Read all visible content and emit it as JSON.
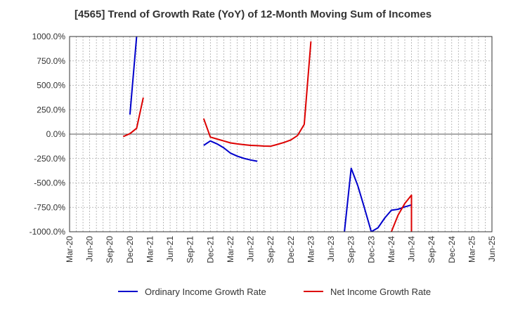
{
  "chart_data": {
    "type": "line",
    "title": "[4565]  Trend of Growth Rate (YoY) of 12-Month Moving Sum of Incomes",
    "xlabel": "",
    "ylabel": "",
    "x_ticks": [
      "Mar-20",
      "Jun-20",
      "Sep-20",
      "Dec-20",
      "Mar-21",
      "Jun-21",
      "Sep-21",
      "Dec-21",
      "Mar-22",
      "Jun-22",
      "Sep-22",
      "Dec-22",
      "Mar-23",
      "Jun-23",
      "Sep-23",
      "Dec-23",
      "Mar-24",
      "Jun-24",
      "Sep-24",
      "Dec-24",
      "Mar-25",
      "Jun-25"
    ],
    "y_ticks": [
      "1000.0%",
      "750.0%",
      "500.0%",
      "250.0%",
      "0.0%",
      "-250.0%",
      "-500.0%",
      "-750.0%",
      "-1000.0%"
    ],
    "ylim": [
      -1000,
      1000
    ],
    "grid": true,
    "legend_position": "bottom",
    "series": [
      {
        "name": "Ordinary Income Growth Rate",
        "color": "#0000cc",
        "points": [
          {
            "x": "2020-12",
            "y": 200
          },
          {
            "x": "2021-01",
            "y": 1000
          },
          {
            "x": "2021-11",
            "y": -115
          },
          {
            "x": "2021-12",
            "y": -70
          },
          {
            "x": "2022-01",
            "y": -100
          },
          {
            "x": "2022-02",
            "y": -140
          },
          {
            "x": "2022-03",
            "y": -195
          },
          {
            "x": "2022-04",
            "y": -225
          },
          {
            "x": "2022-05",
            "y": -248
          },
          {
            "x": "2022-06",
            "y": -265
          },
          {
            "x": "2022-07",
            "y": -278
          },
          {
            "x": "2023-08",
            "y": -1000
          },
          {
            "x": "2023-09",
            "y": -350
          },
          {
            "x": "2023-10",
            "y": -530
          },
          {
            "x": "2023-11",
            "y": -760
          },
          {
            "x": "2023-12",
            "y": -1000
          },
          {
            "x": "2024-01",
            "y": -960
          },
          {
            "x": "2024-02",
            "y": -860
          },
          {
            "x": "2024-03",
            "y": -780
          },
          {
            "x": "2024-04",
            "y": -770
          },
          {
            "x": "2024-05",
            "y": -745
          },
          {
            "x": "2024-06",
            "y": -725
          }
        ]
      },
      {
        "name": "Net Income Growth Rate",
        "color": "#dd0000",
        "points": [
          {
            "x": "2020-11",
            "y": -25
          },
          {
            "x": "2020-12",
            "y": 5
          },
          {
            "x": "2021-01",
            "y": 60
          },
          {
            "x": "2021-02",
            "y": 375
          },
          {
            "x": "2021-11",
            "y": 160
          },
          {
            "x": "2021-12",
            "y": -30
          },
          {
            "x": "2022-01",
            "y": -50
          },
          {
            "x": "2022-02",
            "y": -70
          },
          {
            "x": "2022-03",
            "y": -90
          },
          {
            "x": "2022-04",
            "y": -100
          },
          {
            "x": "2022-05",
            "y": -108
          },
          {
            "x": "2022-06",
            "y": -115
          },
          {
            "x": "2022-07",
            "y": -118
          },
          {
            "x": "2022-08",
            "y": -122
          },
          {
            "x": "2022-09",
            "y": -124
          },
          {
            "x": "2022-10",
            "y": -105
          },
          {
            "x": "2022-11",
            "y": -85
          },
          {
            "x": "2022-12",
            "y": -60
          },
          {
            "x": "2023-01",
            "y": -15
          },
          {
            "x": "2023-02",
            "y": 100
          },
          {
            "x": "2023-03",
            "y": 950
          },
          {
            "x": "2024-03",
            "y": -1000
          },
          {
            "x": "2024-04",
            "y": -830
          },
          {
            "x": "2024-05",
            "y": -710
          },
          {
            "x": "2024-06",
            "y": -625
          },
          {
            "x": "2024-06",
            "y": -1000
          }
        ]
      }
    ]
  }
}
